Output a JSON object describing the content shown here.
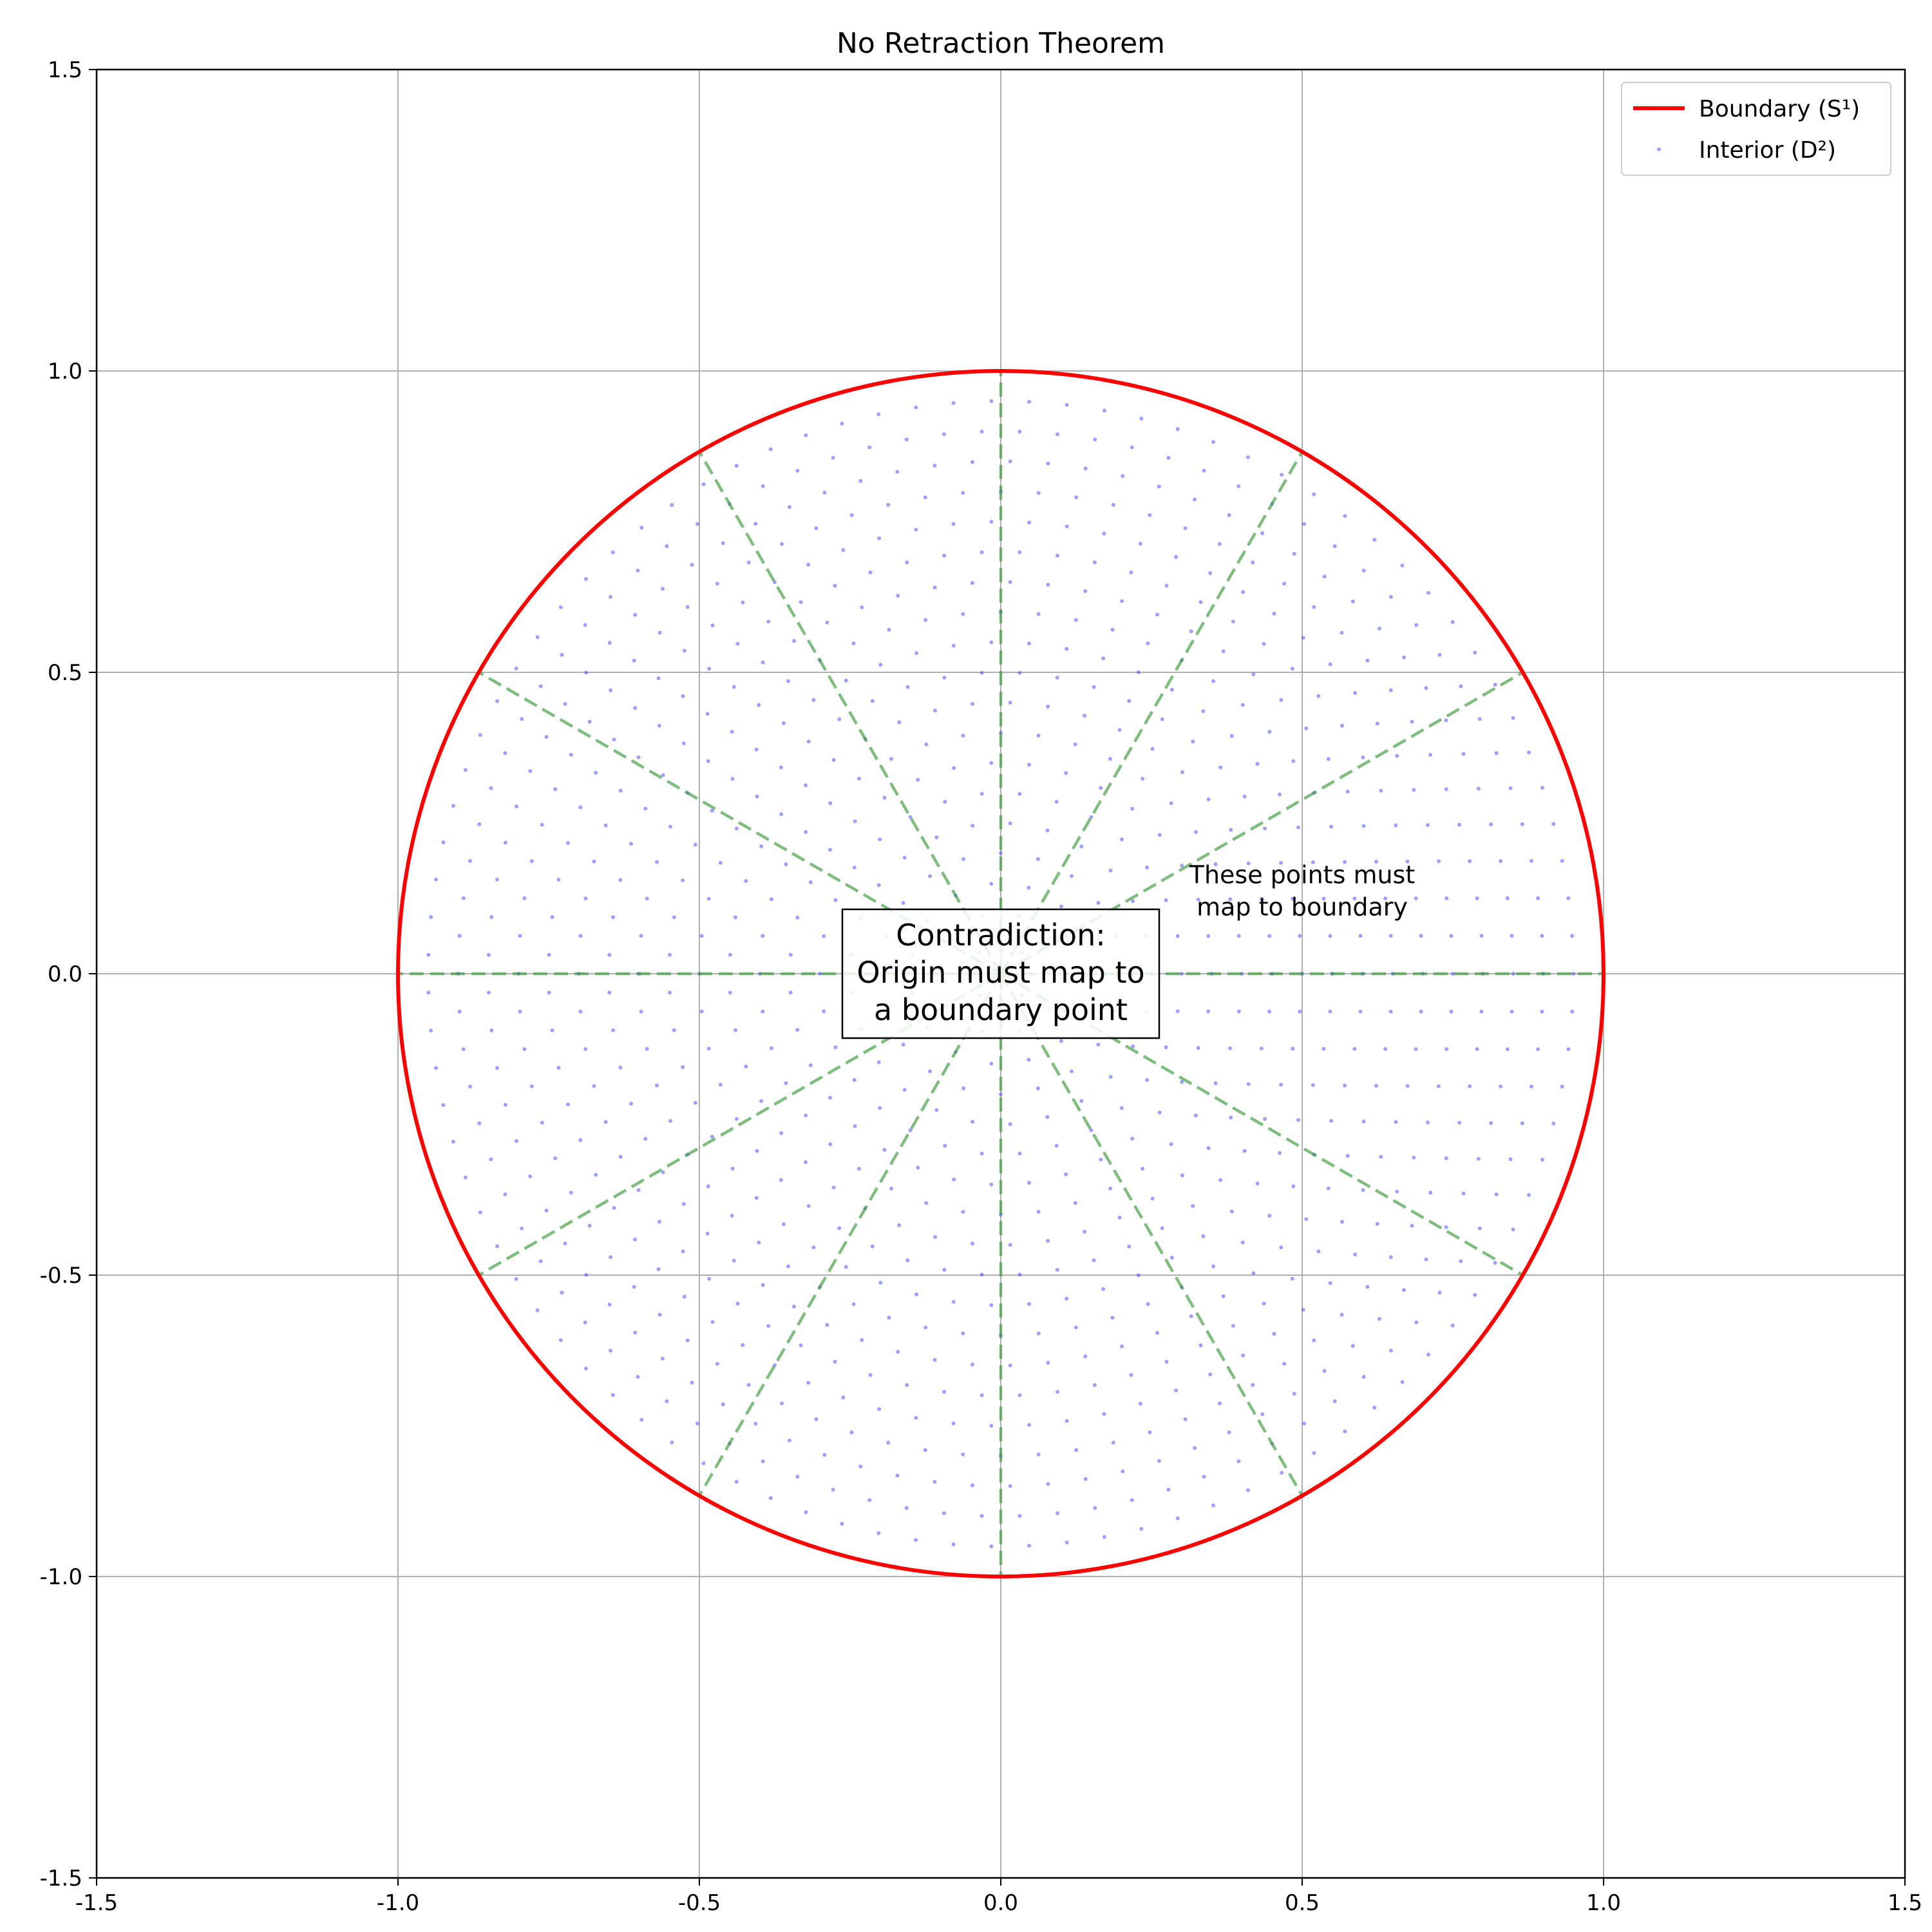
{
  "chart_data": {
    "type": "scatter",
    "title": "No Retraction Theorem",
    "xlabel": "",
    "ylabel": "",
    "xlim": [
      -1.5,
      1.5
    ],
    "ylim": [
      -1.5,
      1.5
    ],
    "grid": true,
    "legend_placement": "top-right",
    "x_ticks": [
      -1.5,
      -1.0,
      -0.5,
      0.0,
      0.5,
      1.0,
      1.5
    ],
    "y_ticks": [
      -1.5,
      -1.0,
      -0.5,
      0.0,
      0.5,
      1.0,
      1.5
    ],
    "x_tick_labels": [
      "-1.5",
      "-1.0",
      "-0.5",
      "0.0",
      "0.5",
      "1.0",
      "1.5"
    ],
    "y_tick_labels": [
      "-1.5",
      "-1.0",
      "-0.5",
      "0.0",
      "0.5",
      "1.0",
      "1.5"
    ],
    "series": [
      {
        "name": "Boundary (S¹)",
        "kind": "line",
        "shape": "unit circle",
        "radius": 1.0,
        "center": [
          0,
          0
        ],
        "color": "#ff0000"
      },
      {
        "name": "Interior (D²)",
        "kind": "scatter",
        "shape": "concentric rings of points",
        "rings": 19,
        "radius_min": 0.05,
        "radius_max": 0.95,
        "points_per_unit_radius": 100,
        "color": "#4040ff"
      },
      {
        "kind": "rays",
        "style": "dashed",
        "count": 12,
        "angle_step_deg": 30,
        "from_radius": 0,
        "to_radius": 1.0,
        "color": "#3a9a3a"
      }
    ],
    "annotations": {
      "box_text": [
        "Contradiction:",
        "Origin must map to",
        "a boundary point"
      ],
      "box_position": [
        0.0,
        0.0
      ],
      "side_text": [
        "These points must",
        "map to boundary"
      ],
      "side_position": [
        0.5,
        0.15
      ]
    }
  }
}
